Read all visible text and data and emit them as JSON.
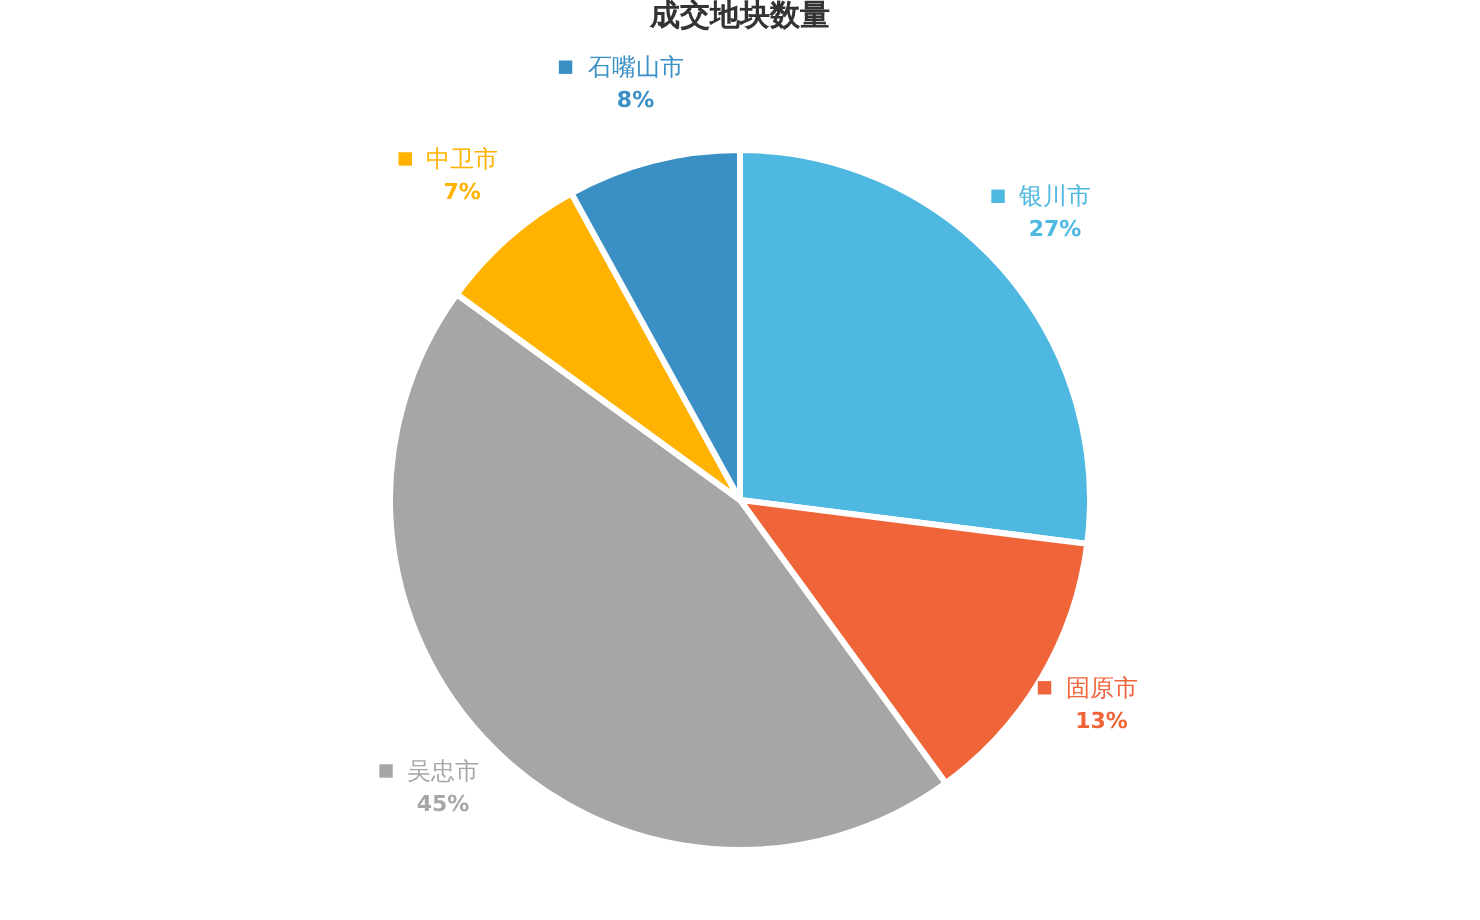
{
  "chart_data": {
    "type": "pie",
    "title": "成交地块数量",
    "categories": [
      "银川市",
      "固原市",
      "吴忠市",
      "中卫市",
      "石嘴山市"
    ],
    "values": [
      27,
      13,
      45,
      7,
      8
    ],
    "value_labels": [
      "27%",
      "13%",
      "45%",
      "7%",
      "8%"
    ],
    "colors": [
      "#4fb8e0",
      "#f0643a",
      "#a6a6a6",
      "#ffb300",
      "#3a8fc4"
    ],
    "legend": "right"
  }
}
